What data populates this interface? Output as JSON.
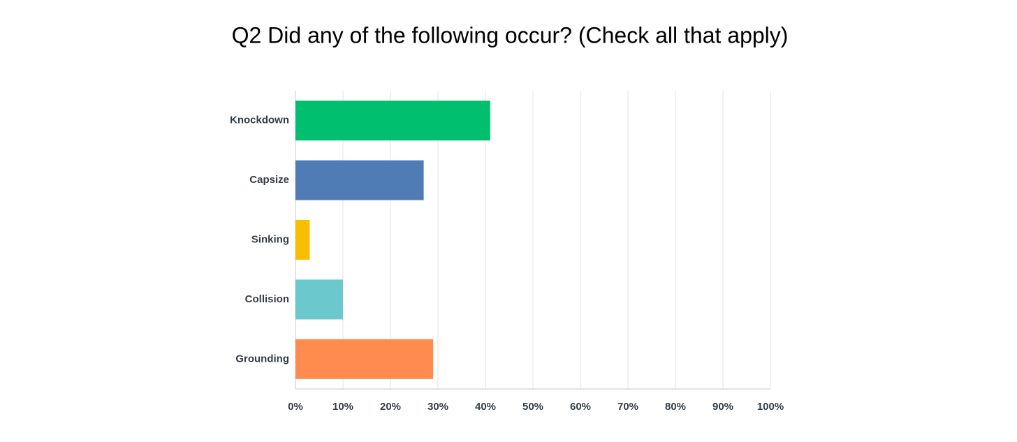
{
  "chart_data": {
    "type": "bar",
    "orientation": "horizontal",
    "title": "Q2 Did any of the following occur? (Check all that apply)",
    "categories": [
      "Knockdown",
      "Capsize",
      "Sinking",
      "Collision",
      "Grounding"
    ],
    "values": [
      41,
      27,
      3,
      10,
      29
    ],
    "colors": [
      "#00bf6f",
      "#507cb6",
      "#f9be00",
      "#6bc8cd",
      "#ff8b4f"
    ],
    "xlim": [
      0,
      100
    ],
    "xticks": [
      {
        "value": 0,
        "label": "0%"
      },
      {
        "value": 10,
        "label": "10%"
      },
      {
        "value": 20,
        "label": "20%"
      },
      {
        "value": 30,
        "label": "30%"
      },
      {
        "value": 40,
        "label": "40%"
      },
      {
        "value": 50,
        "label": "50%"
      },
      {
        "value": 60,
        "label": "60%"
      },
      {
        "value": 70,
        "label": "70%"
      },
      {
        "value": 80,
        "label": "80%"
      },
      {
        "value": 90,
        "label": "90%"
      },
      {
        "value": 100,
        "label": "100%"
      }
    ],
    "grid": true
  }
}
